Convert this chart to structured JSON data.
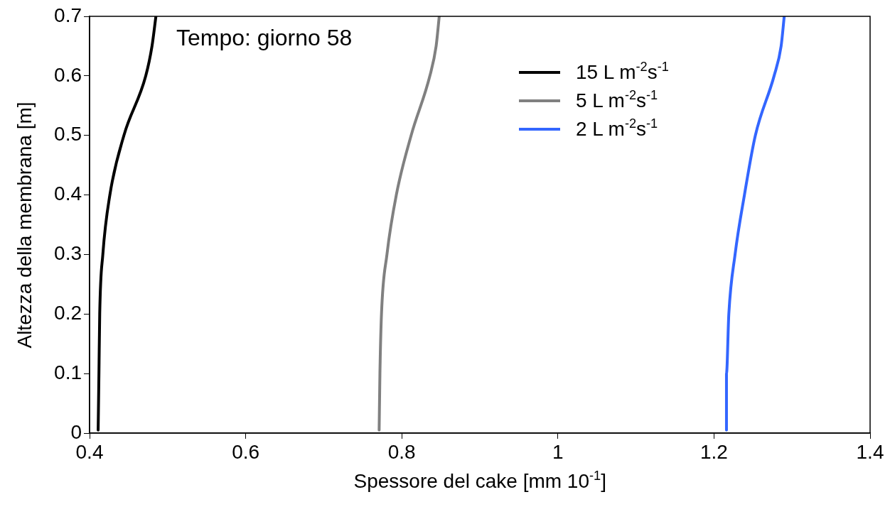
{
  "chart_data": {
    "type": "line",
    "xlabel": "Spessore del cake [mm 10$^{-1}$]",
    "ylabel": "Altezza della membrana [m]",
    "xlim": [
      0.4,
      1.4
    ],
    "xticks": [
      0.4,
      0.6,
      0.8,
      1,
      1.2,
      1.4
    ],
    "ylim": [
      0,
      0.7
    ],
    "yticks": [
      0,
      0.1,
      0.2,
      0.3,
      0.4,
      0.5,
      0.6,
      0.7
    ],
    "grid": false,
    "legend": "top right",
    "marker": "none",
    "line_style": "solid",
    "annotations": [
      "Tempo: giorno 58"
    ],
    "series": [
      {
        "name": "15 L m$^{-2}$s$^{-1}$",
        "color": "#000000",
        "x": [
          0.411,
          0.412,
          0.413,
          0.417,
          0.426,
          0.444,
          0.472,
          0.48,
          0.485
        ],
        "values": [
          0.005,
          0.1,
          0.2,
          0.3,
          0.4,
          0.5,
          0.6,
          0.65,
          0.7
        ]
      },
      {
        "name": "5 L m$^{-2}$s$^{-1}$",
        "color": "#808080",
        "x": [
          0.771,
          0.772,
          0.774,
          0.781,
          0.793,
          0.812,
          0.836,
          0.844,
          0.848
        ],
        "values": [
          0.005,
          0.1,
          0.2,
          0.3,
          0.4,
          0.5,
          0.6,
          0.65,
          0.7
        ]
      },
      {
        "name": "2 L m$^{-2}$s$^{-1}$",
        "color": "#3366ff",
        "x": [
          1.216,
          1.216,
          1.219,
          1.227,
          1.239,
          1.253,
          1.277,
          1.286,
          1.29
        ],
        "values": [
          0.005,
          0.1,
          0.2,
          0.3,
          0.4,
          0.5,
          0.6,
          0.65,
          0.7
        ]
      }
    ]
  }
}
